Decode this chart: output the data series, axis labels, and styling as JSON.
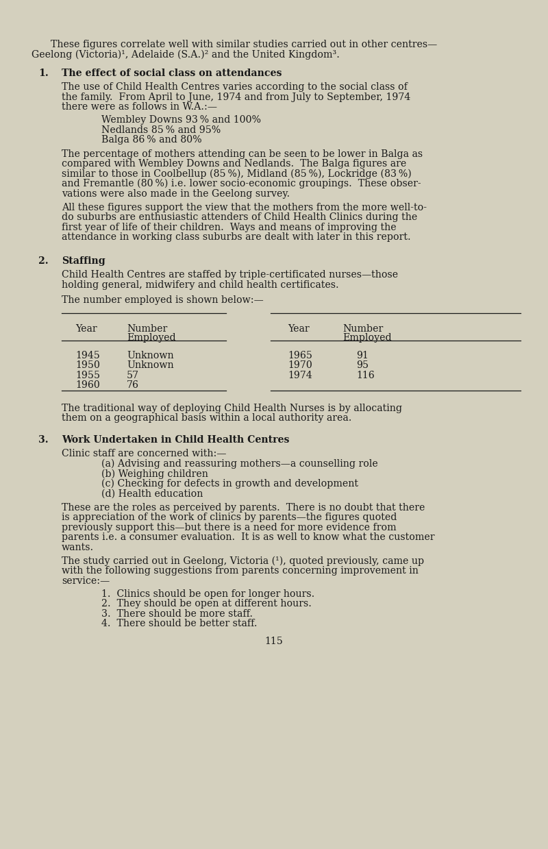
{
  "bg_color": "#d4d0be",
  "text_color": "#1a1a1a",
  "page_number": "115",
  "intro_line1": "    These figures correlate well with similar studies carried out in other centres—",
  "intro_line2": "Geelong (Victoria)¹, Adelaide (S.A.)² and the United Kingdom³.",
  "s1_head": "The effect of social class on attendances",
  "s1_head_num": "1.",
  "s1_p1": [
    "The use of Child Health Centres varies according to the social class of",
    "the family.  From April to June, 1974 and from July to September, 1974",
    "there were as follows in W.A.:—"
  ],
  "s1_list": [
    "Wembley Downs 93 % and 100%",
    "Nedlands 85 % and 95%",
    "Balga 86 % and 80%"
  ],
  "s1_p2": [
    "The percentage of mothers attending can be seen to be lower in Balga as",
    "compared with Wembley Downs and Nedlands.  The Balga figures are",
    "similar to those in Coolbellup (85 %), Midland (85 %), Lockridge (83 %)",
    "and Fremantle (80 %) i.e. lower socio-economic groupings.  These obser-",
    "vations were also made in the Geelong survey."
  ],
  "s1_p3": [
    "All these figures support the view that the mothers from the more well-to-",
    "do suburbs are enthusiastic attenders of Child Health Clinics during the",
    "first year of life of their children.  Ways and means of improving the",
    "attendance in working class suburbs are dealt with later in this report."
  ],
  "s2_head": "Staffing",
  "s2_head_num": "2.",
  "s2_p1": [
    "Child Health Centres are staffed by triple-certificated nurses—those",
    "holding general, midwifery and child health certificates."
  ],
  "s2_p2": "The number employed is shown below:—",
  "tbl_l_years": [
    "1945",
    "1950",
    "1955",
    "1960"
  ],
  "tbl_l_emp": [
    "Unknown",
    "Unknown",
    "57",
    "76"
  ],
  "tbl_r_years": [
    "1965",
    "1970",
    "1974"
  ],
  "tbl_r_emp": [
    "91",
    "95",
    "116"
  ],
  "s2_p3": [
    "The traditional way of deploying Child Health Nurses is by allocating",
    "them on a geographical basis within a local authority area."
  ],
  "s3_head": "Work Undertaken in Child Health Centres",
  "s3_head_num": "3.",
  "s3_p1": "Clinic staff are concerned with:—",
  "s3_list1": [
    "(a) Advising and reassuring mothers—a counselling role",
    "(b) Weighing children",
    "(c) Checking for defects in growth and development",
    "(d) Health education"
  ],
  "s3_p2": [
    "These are the roles as perceived by parents.  There is no doubt that there",
    "is appreciation of the work of clinics by parents—the figures quoted",
    "previously support this—but there is a need for more evidence from",
    "parents i.e. a consumer evaluation.  It is as well to know what the customer",
    "wants."
  ],
  "s3_p3": [
    "The study carried out in Geelong, Victoria (¹), quoted previously, came up",
    "with the following suggestions from parents concerning improvement in",
    "service:—"
  ],
  "s3_list2": [
    "1.  Clinics should be open for longer hours.",
    "2.  They should be open at different hours.",
    "3.  There should be more staff.",
    "4.  There should be better staff."
  ],
  "fs": 10.2,
  "lh": 14.5
}
